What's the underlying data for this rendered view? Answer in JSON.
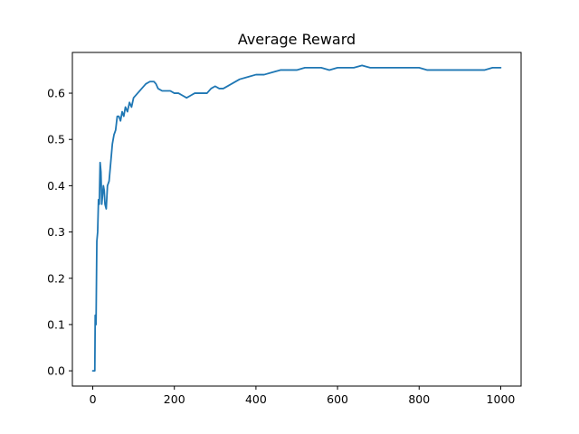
{
  "chart_data": {
    "type": "line",
    "title": "Average Reward",
    "xlabel": "",
    "ylabel": "",
    "xlim": [
      -50,
      1050
    ],
    "ylim": [
      -0.033,
      0.688
    ],
    "grid": false,
    "legend": "none",
    "x_ticks": [
      0,
      200,
      400,
      600,
      800,
      1000
    ],
    "y_ticks": [
      0.0,
      0.1,
      0.2,
      0.3,
      0.4,
      0.5,
      0.6
    ],
    "x_tick_labels": [
      "0",
      "200",
      "400",
      "600",
      "800",
      "1000"
    ],
    "y_tick_labels": [
      "0.0",
      "0.1",
      "0.2",
      "0.3",
      "0.4",
      "0.5",
      "0.6"
    ],
    "series": [
      {
        "color": "#1f77b4",
        "x": [
          0,
          3,
          5,
          6,
          8,
          10,
          12,
          14,
          16,
          18,
          20,
          22,
          24,
          26,
          28,
          30,
          33,
          36,
          40,
          44,
          48,
          52,
          56,
          60,
          64,
          68,
          72,
          76,
          80,
          85,
          90,
          95,
          100,
          110,
          120,
          130,
          140,
          150,
          155,
          160,
          170,
          180,
          190,
          200,
          210,
          220,
          230,
          240,
          250,
          260,
          270,
          280,
          290,
          300,
          310,
          320,
          340,
          360,
          380,
          400,
          420,
          440,
          460,
          480,
          500,
          520,
          540,
          560,
          580,
          600,
          620,
          640,
          660,
          680,
          700,
          720,
          740,
          760,
          780,
          800,
          820,
          840,
          860,
          880,
          900,
          920,
          940,
          960,
          980,
          1000
        ],
        "y": [
          0.0,
          0.0,
          0.0,
          0.12,
          0.1,
          0.28,
          0.3,
          0.37,
          0.36,
          0.45,
          0.43,
          0.36,
          0.38,
          0.4,
          0.39,
          0.36,
          0.35,
          0.4,
          0.41,
          0.45,
          0.49,
          0.51,
          0.52,
          0.55,
          0.55,
          0.54,
          0.56,
          0.55,
          0.57,
          0.56,
          0.58,
          0.57,
          0.59,
          0.6,
          0.61,
          0.62,
          0.625,
          0.625,
          0.62,
          0.61,
          0.605,
          0.605,
          0.605,
          0.6,
          0.6,
          0.595,
          0.59,
          0.595,
          0.6,
          0.6,
          0.6,
          0.6,
          0.61,
          0.615,
          0.61,
          0.61,
          0.62,
          0.63,
          0.635,
          0.64,
          0.64,
          0.645,
          0.65,
          0.65,
          0.65,
          0.655,
          0.655,
          0.655,
          0.65,
          0.655,
          0.655,
          0.655,
          0.66,
          0.655,
          0.655,
          0.655,
          0.655,
          0.655,
          0.655,
          0.655,
          0.65,
          0.65,
          0.65,
          0.65,
          0.65,
          0.65,
          0.65,
          0.65,
          0.655,
          0.655
        ]
      }
    ]
  }
}
